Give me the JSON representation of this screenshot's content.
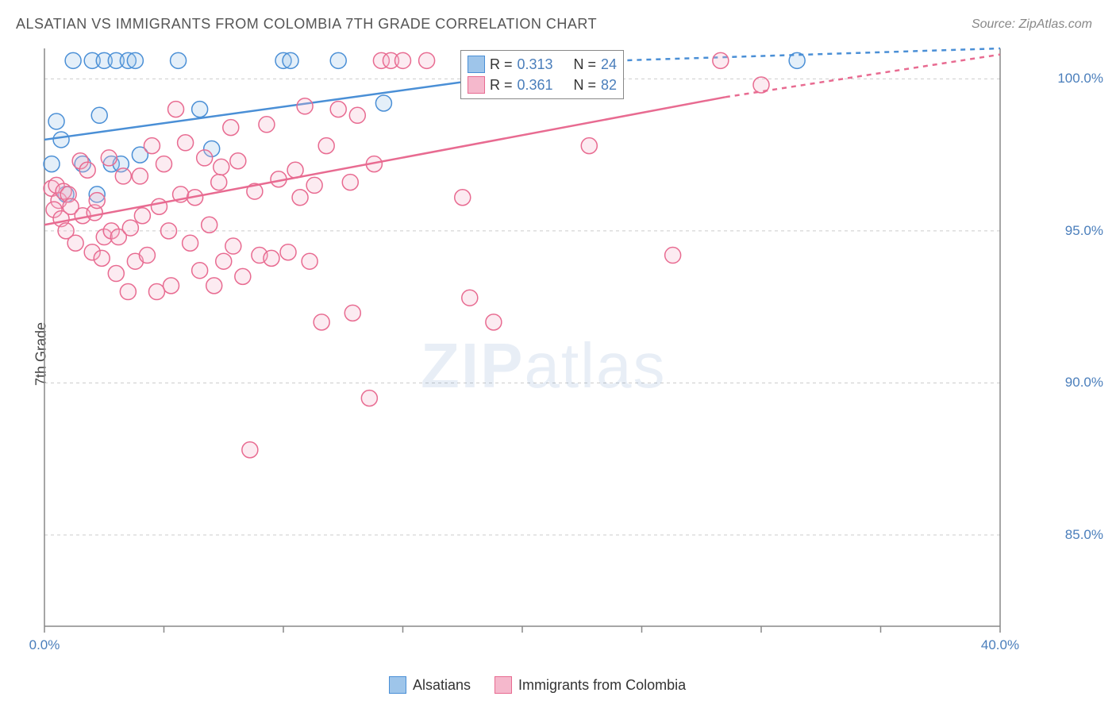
{
  "title": "ALSATIAN VS IMMIGRANTS FROM COLOMBIA 7TH GRADE CORRELATION CHART",
  "source": "Source: ZipAtlas.com",
  "ylabel": "7th Grade",
  "watermark_zip": "ZIP",
  "watermark_atlas": "atlas",
  "chart": {
    "type": "scatter",
    "xlim": [
      0,
      40
    ],
    "ylim": [
      82,
      101
    ],
    "yticks": [
      {
        "v": 85,
        "label": "85.0%"
      },
      {
        "v": 90,
        "label": "90.0%"
      },
      {
        "v": 95,
        "label": "95.0%"
      },
      {
        "v": 100,
        "label": "100.0%"
      }
    ],
    "xtick_positions": [
      0,
      5,
      10,
      15,
      20,
      25,
      30,
      35,
      40
    ],
    "xtick_labels": [
      {
        "v": 0,
        "label": "0.0%"
      },
      {
        "v": 40,
        "label": "40.0%"
      }
    ],
    "grid_color": "#cccccc",
    "axis_color": "#888888",
    "background_color": "#ffffff",
    "marker_radius": 10,
    "marker_stroke_width": 1.5,
    "marker_fill_opacity": 0.28,
    "trend_line_width": 2.5,
    "series": [
      {
        "name": "Alsatians",
        "color_stroke": "#4a8fd6",
        "color_fill": "#9ec5ea",
        "R": 0.313,
        "N": 24,
        "trend": {
          "x1": 0,
          "y1": 98.0,
          "x2": 24,
          "y2": 100.6,
          "dash_from_x": 24,
          "dash_to_x": 40,
          "y_at_end": 101.0
        },
        "points": [
          {
            "x": 0.5,
            "y": 98.6
          },
          {
            "x": 0.7,
            "y": 98.0
          },
          {
            "x": 0.3,
            "y": 97.2
          },
          {
            "x": 0.9,
            "y": 96.2
          },
          {
            "x": 1.2,
            "y": 100.6
          },
          {
            "x": 1.6,
            "y": 97.2
          },
          {
            "x": 2.0,
            "y": 100.6
          },
          {
            "x": 2.3,
            "y": 98.8
          },
          {
            "x": 2.5,
            "y": 100.6
          },
          {
            "x": 2.8,
            "y": 97.2
          },
          {
            "x": 3.0,
            "y": 100.6
          },
          {
            "x": 3.2,
            "y": 97.2
          },
          {
            "x": 3.5,
            "y": 100.6
          },
          {
            "x": 3.8,
            "y": 100.6
          },
          {
            "x": 4.0,
            "y": 97.5
          },
          {
            "x": 2.2,
            "y": 96.2
          },
          {
            "x": 5.6,
            "y": 100.6
          },
          {
            "x": 6.5,
            "y": 99.0
          },
          {
            "x": 7.0,
            "y": 97.7
          },
          {
            "x": 10.0,
            "y": 100.6
          },
          {
            "x": 10.3,
            "y": 100.6
          },
          {
            "x": 12.3,
            "y": 100.6
          },
          {
            "x": 14.2,
            "y": 99.2
          },
          {
            "x": 31.5,
            "y": 100.6
          }
        ]
      },
      {
        "name": "Immigrants from Colombia",
        "color_stroke": "#e86b91",
        "color_fill": "#f5b8cc",
        "R": 0.361,
        "N": 82,
        "trend": {
          "x1": 0,
          "y1": 95.2,
          "x2": 28.5,
          "y2": 99.4,
          "dash_from_x": 28.5,
          "dash_to_x": 40,
          "y_at_end": 100.8
        },
        "points": [
          {
            "x": 0.3,
            "y": 96.4
          },
          {
            "x": 0.5,
            "y": 96.5
          },
          {
            "x": 0.6,
            "y": 96.0
          },
          {
            "x": 0.4,
            "y": 95.7
          },
          {
            "x": 0.8,
            "y": 96.3
          },
          {
            "x": 1.0,
            "y": 96.2
          },
          {
            "x": 0.7,
            "y": 95.4
          },
          {
            "x": 1.1,
            "y": 95.8
          },
          {
            "x": 0.9,
            "y": 95.0
          },
          {
            "x": 1.3,
            "y": 94.6
          },
          {
            "x": 1.5,
            "y": 97.3
          },
          {
            "x": 1.6,
            "y": 95.5
          },
          {
            "x": 1.8,
            "y": 97.0
          },
          {
            "x": 2.0,
            "y": 94.3
          },
          {
            "x": 2.1,
            "y": 95.6
          },
          {
            "x": 2.2,
            "y": 96.0
          },
          {
            "x": 2.4,
            "y": 94.1
          },
          {
            "x": 2.5,
            "y": 94.8
          },
          {
            "x": 2.7,
            "y": 97.4
          },
          {
            "x": 2.8,
            "y": 95.0
          },
          {
            "x": 3.0,
            "y": 93.6
          },
          {
            "x": 3.1,
            "y": 94.8
          },
          {
            "x": 3.3,
            "y": 96.8
          },
          {
            "x": 3.5,
            "y": 93.0
          },
          {
            "x": 3.6,
            "y": 95.1
          },
          {
            "x": 3.8,
            "y": 94.0
          },
          {
            "x": 4.0,
            "y": 96.8
          },
          {
            "x": 4.1,
            "y": 95.5
          },
          {
            "x": 4.3,
            "y": 94.2
          },
          {
            "x": 4.5,
            "y": 97.8
          },
          {
            "x": 4.7,
            "y": 93.0
          },
          {
            "x": 4.8,
            "y": 95.8
          },
          {
            "x": 5.0,
            "y": 97.2
          },
          {
            "x": 5.2,
            "y": 95.0
          },
          {
            "x": 5.3,
            "y": 93.2
          },
          {
            "x": 5.5,
            "y": 99.0
          },
          {
            "x": 5.7,
            "y": 96.2
          },
          {
            "x": 5.9,
            "y": 97.9
          },
          {
            "x": 6.1,
            "y": 94.6
          },
          {
            "x": 6.3,
            "y": 96.1
          },
          {
            "x": 6.5,
            "y": 93.7
          },
          {
            "x": 6.7,
            "y": 97.4
          },
          {
            "x": 6.9,
            "y": 95.2
          },
          {
            "x": 7.1,
            "y": 93.2
          },
          {
            "x": 7.3,
            "y": 96.6
          },
          {
            "x": 7.5,
            "y": 94.0
          },
          {
            "x": 7.8,
            "y": 98.4
          },
          {
            "x": 7.4,
            "y": 97.1
          },
          {
            "x": 7.9,
            "y": 94.5
          },
          {
            "x": 8.1,
            "y": 97.3
          },
          {
            "x": 8.3,
            "y": 93.5
          },
          {
            "x": 8.6,
            "y": 87.8
          },
          {
            "x": 8.8,
            "y": 96.3
          },
          {
            "x": 9.0,
            "y": 94.2
          },
          {
            "x": 9.3,
            "y": 98.5
          },
          {
            "x": 9.5,
            "y": 94.1
          },
          {
            "x": 9.8,
            "y": 96.7
          },
          {
            "x": 10.2,
            "y": 94.3
          },
          {
            "x": 10.5,
            "y": 97.0
          },
          {
            "x": 10.7,
            "y": 96.1
          },
          {
            "x": 10.9,
            "y": 99.1
          },
          {
            "x": 11.1,
            "y": 94.0
          },
          {
            "x": 11.3,
            "y": 96.5
          },
          {
            "x": 11.6,
            "y": 92.0
          },
          {
            "x": 11.8,
            "y": 97.8
          },
          {
            "x": 12.3,
            "y": 99.0
          },
          {
            "x": 12.8,
            "y": 96.6
          },
          {
            "x": 12.9,
            "y": 92.3
          },
          {
            "x": 13.1,
            "y": 98.8
          },
          {
            "x": 13.6,
            "y": 89.5
          },
          {
            "x": 13.8,
            "y": 97.2
          },
          {
            "x": 14.1,
            "y": 100.6
          },
          {
            "x": 14.5,
            "y": 100.6
          },
          {
            "x": 15.0,
            "y": 100.6
          },
          {
            "x": 16.0,
            "y": 100.6
          },
          {
            "x": 17.5,
            "y": 96.1
          },
          {
            "x": 17.8,
            "y": 92.8
          },
          {
            "x": 18.8,
            "y": 92.0
          },
          {
            "x": 22.8,
            "y": 97.8
          },
          {
            "x": 26.3,
            "y": 94.2
          },
          {
            "x": 28.3,
            "y": 100.6
          },
          {
            "x": 30.0,
            "y": 99.8
          }
        ]
      }
    ]
  },
  "legend_top": {
    "rows": [
      {
        "swatch_fill": "#9ec5ea",
        "swatch_stroke": "#4a8fd6",
        "r_label": "R =",
        "r_value": "0.313",
        "n_label": "N =",
        "n_value": "24"
      },
      {
        "swatch_fill": "#f5b8cc",
        "swatch_stroke": "#e86b91",
        "r_label": "R =",
        "r_value": "0.361",
        "n_label": "N =",
        "n_value": "82"
      }
    ]
  },
  "legend_bottom": {
    "items": [
      {
        "swatch_fill": "#9ec5ea",
        "swatch_stroke": "#4a8fd6",
        "label": "Alsatians"
      },
      {
        "swatch_fill": "#f5b8cc",
        "swatch_stroke": "#e86b91",
        "label": "Immigrants from Colombia"
      }
    ]
  }
}
